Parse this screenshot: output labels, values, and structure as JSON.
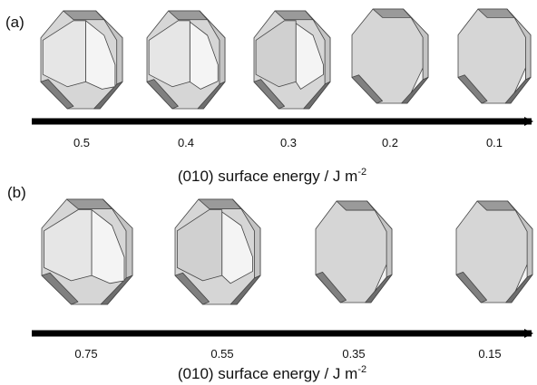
{
  "panels": [
    {
      "label": "(a)",
      "ticks": [
        "0.5",
        "0.4",
        "0.3",
        "0.2",
        "0.1"
      ],
      "axis_label": {
        "text": "(010) surface energy / J m",
        "superscript": "-2"
      }
    },
    {
      "label": "(b)",
      "ticks": [
        "0.75",
        "0.55",
        "0.35",
        "0.15"
      ],
      "axis_label": {
        "text": "(010) surface energy / J m",
        "superscript": "-2"
      }
    }
  ]
}
